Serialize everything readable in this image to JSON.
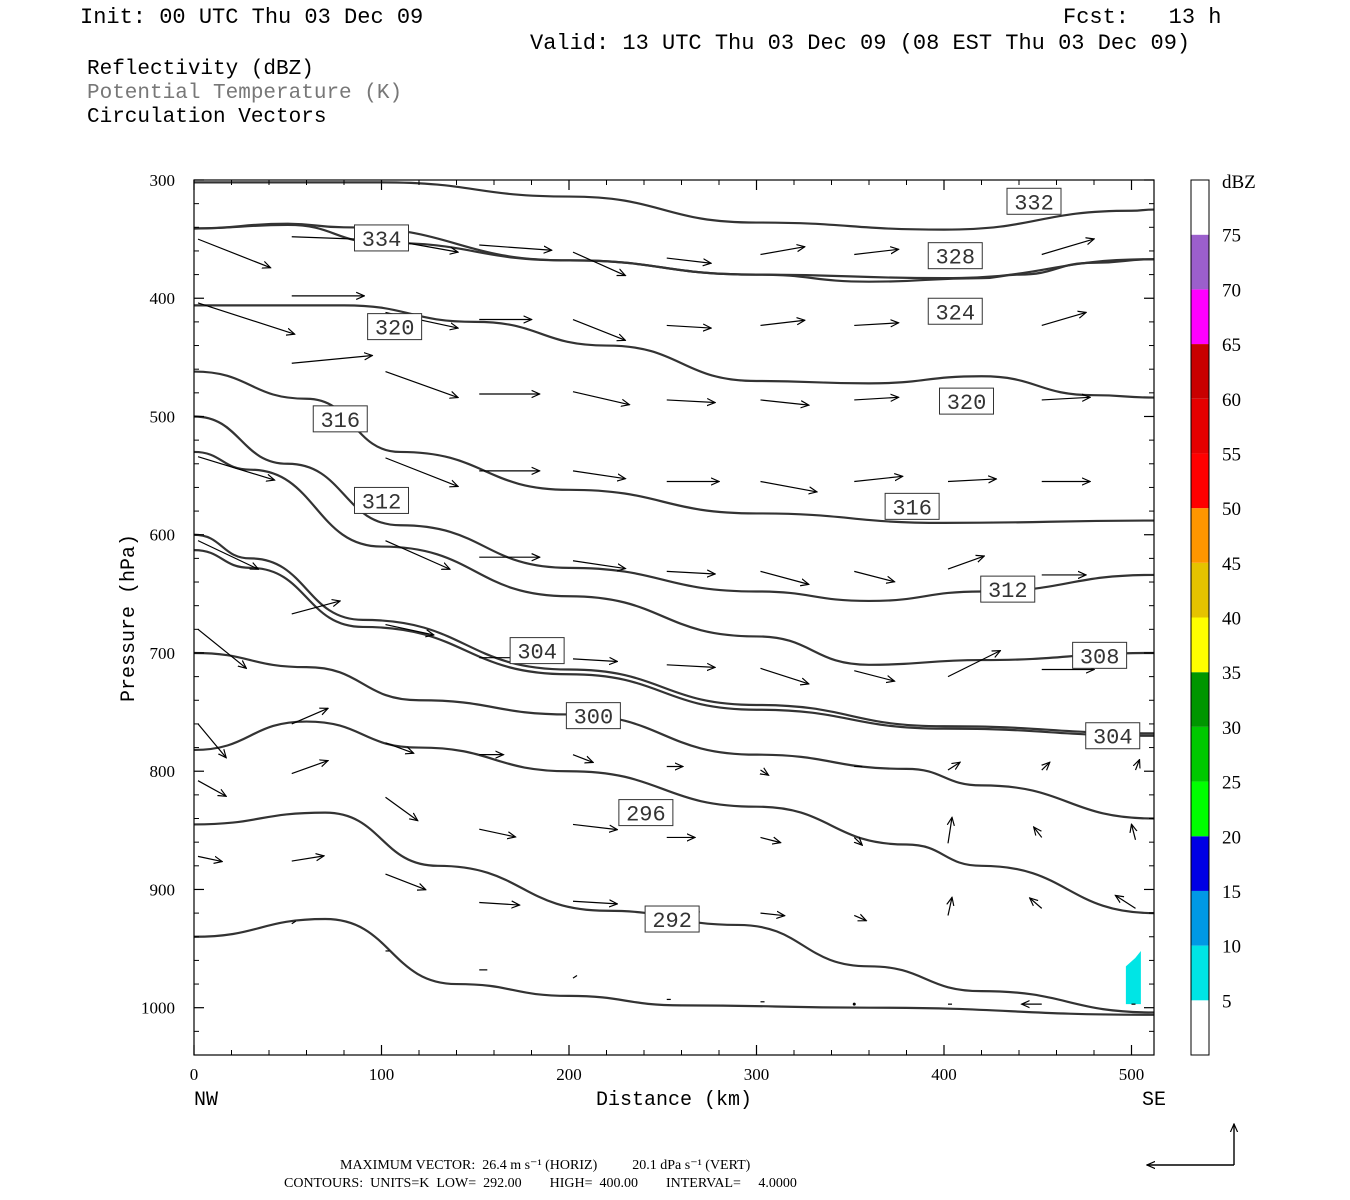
{
  "header": {
    "init": "Init: 00 UTC Thu 03 Dec 09",
    "fcst": "Fcst:   13 h",
    "valid": "Valid: 13 UTC Thu 03 Dec 09 (08 EST Thu 03 Dec 09)"
  },
  "fields": {
    "reflectivity": "Reflectivity (dBZ)",
    "potential_temperature": "Potential Temperature (K)",
    "circulation": "Circulation Vectors"
  },
  "footer": {
    "max_vector": "MAXIMUM VECTOR:  26.4 m s⁻¹ (HORIZ)          20.1 dPa s⁻¹ (VERT)",
    "contours": "CONTOURS:  UNITS=K  LOW=  292.00        HIGH=  400.00        INTERVAL=     4.0000"
  },
  "colors": {
    "contour": "#333333",
    "vector": "#000000",
    "reflectivity_echo": "#00e5e5"
  },
  "chart_data": {
    "type": "cross-section",
    "xlabel": "Distance (km)",
    "ylabel": "Pressure (hPa)",
    "x_range": [
      0,
      512
    ],
    "y_range": [
      1040,
      300
    ],
    "x_ticks": [
      0,
      100,
      200,
      300,
      400,
      500
    ],
    "y_ticks": [
      300,
      400,
      500,
      600,
      700,
      800,
      900,
      1000
    ],
    "x_end_labels": {
      "left": "NW",
      "right": "SE"
    },
    "colorbar": {
      "unit": "dBZ",
      "levels": [
        5,
        10,
        15,
        20,
        25,
        30,
        35,
        40,
        45,
        50,
        55,
        60,
        65,
        70,
        75
      ],
      "colors": [
        "#ffffff",
        "#00e5e5",
        "#0099e5",
        "#0000e5",
        "#00ff00",
        "#00c800",
        "#009600",
        "#ffff00",
        "#e5c300",
        "#ff9600",
        "#ff0000",
        "#e50000",
        "#c80000",
        "#ff00ff",
        "#9b5fcc",
        "#ffffff"
      ]
    },
    "contours": [
      {
        "label": "332",
        "label_at": [
          448,
          318
        ],
        "points": [
          [
            0,
            302
          ],
          [
            100,
            302
          ],
          [
            200,
            314
          ],
          [
            300,
            336
          ],
          [
            400,
            342
          ],
          [
            500,
            326
          ],
          [
            512,
            325
          ]
        ]
      },
      {
        "label": "328",
        "label_at": [
          406,
          364
        ],
        "points": [
          [
            0,
            341
          ],
          [
            50,
            338
          ],
          [
            100,
            353
          ],
          [
            200,
            368
          ],
          [
            300,
            380
          ],
          [
            360,
            386
          ],
          [
            420,
            383
          ],
          [
            440,
            380
          ],
          [
            480,
            370
          ],
          [
            512,
            367
          ]
        ]
      },
      {
        "label": "334",
        "label_at": [
          100,
          349
        ],
        "points": [
          [
            0,
            341
          ],
          [
            50,
            337
          ],
          [
            80,
            340
          ],
          [
            200,
            368
          ],
          [
            300,
            380
          ],
          [
            400,
            383
          ],
          [
            512,
            367
          ]
        ]
      },
      {
        "label": "324",
        "label_at": [
          406,
          411
        ],
        "points": [
          [
            0,
            406
          ],
          [
            80,
            406
          ],
          [
            150,
            420
          ],
          [
            220,
            440
          ],
          [
            300,
            470
          ],
          [
            360,
            472
          ],
          [
            420,
            466
          ],
          [
            480,
            482
          ],
          [
            512,
            484
          ]
        ]
      },
      {
        "label": "320",
        "label_at": [
          107,
          424
        ],
        "points": [
          [
            0,
            406
          ],
          [
            80,
            406
          ],
          [
            150,
            420
          ],
          [
            220,
            440
          ],
          [
            300,
            470
          ],
          [
            360,
            472
          ],
          [
            420,
            466
          ],
          [
            480,
            482
          ],
          [
            512,
            484
          ]
        ]
      },
      {
        "label": "320",
        "label_at": [
          412,
          487
        ],
        "points": [
          [
            0,
            462
          ],
          [
            60,
            485
          ],
          [
            110,
            530
          ],
          [
            200,
            562
          ],
          [
            300,
            582
          ],
          [
            400,
            590
          ],
          [
            512,
            588
          ]
        ]
      },
      {
        "label": "316",
        "label_at": [
          78,
          502
        ],
        "points": [
          [
            0,
            462
          ],
          [
            60,
            485
          ],
          [
            110,
            530
          ],
          [
            200,
            562
          ],
          [
            300,
            582
          ],
          [
            400,
            590
          ],
          [
            512,
            588
          ]
        ]
      },
      {
        "label": "316",
        "label_at": [
          383,
          576
        ],
        "points": [
          [
            0,
            500
          ],
          [
            50,
            540
          ],
          [
            110,
            592
          ],
          [
            200,
            628
          ],
          [
            300,
            648
          ],
          [
            360,
            656
          ],
          [
            420,
            648
          ],
          [
            512,
            634
          ]
        ]
      },
      {
        "label": "312",
        "label_at": [
          100,
          571
        ],
        "points": [
          [
            0,
            500
          ],
          [
            50,
            540
          ],
          [
            110,
            592
          ],
          [
            200,
            628
          ],
          [
            300,
            648
          ],
          [
            360,
            656
          ],
          [
            420,
            648
          ],
          [
            512,
            634
          ]
        ]
      },
      {
        "label": "312",
        "label_at": [
          434,
          646
        ],
        "points": [
          [
            0,
            530
          ],
          [
            30,
            545
          ],
          [
            100,
            610
          ],
          [
            200,
            652
          ],
          [
            300,
            686
          ],
          [
            360,
            710
          ],
          [
            420,
            706
          ],
          [
            512,
            700
          ]
        ]
      },
      {
        "label": "308",
        "label_at": [
          483,
          702
        ],
        "points": [
          [
            0,
            600
          ],
          [
            30,
            620
          ],
          [
            90,
            672
          ],
          [
            200,
            714
          ],
          [
            300,
            744
          ],
          [
            400,
            762
          ],
          [
            512,
            768
          ]
        ]
      },
      {
        "label": "304",
        "label_at": [
          183,
          698
        ],
        "points": [
          [
            0,
            613
          ],
          [
            30,
            628
          ],
          [
            90,
            678
          ],
          [
            200,
            718
          ],
          [
            300,
            748
          ],
          [
            400,
            764
          ],
          [
            512,
            770
          ]
        ]
      },
      {
        "label": "304",
        "label_at": [
          490,
          770
        ],
        "points": [
          [
            0,
            700
          ],
          [
            60,
            712
          ],
          [
            120,
            740
          ],
          [
            200,
            752
          ],
          [
            300,
            786
          ],
          [
            380,
            798
          ],
          [
            420,
            812
          ],
          [
            512,
            840
          ]
        ]
      },
      {
        "label": "300",
        "label_at": [
          213,
          753
        ],
        "points": [
          [
            0,
            782
          ],
          [
            60,
            758
          ],
          [
            120,
            780
          ],
          [
            200,
            800
          ],
          [
            300,
            830
          ],
          [
            380,
            862
          ],
          [
            420,
            880
          ],
          [
            512,
            920
          ]
        ]
      },
      {
        "label": "296",
        "label_at": [
          241,
          835
        ],
        "points": [
          [
            0,
            845
          ],
          [
            70,
            835
          ],
          [
            130,
            880
          ],
          [
            220,
            918
          ],
          [
            290,
            930
          ],
          [
            360,
            965
          ],
          [
            420,
            986
          ],
          [
            512,
            1004
          ]
        ]
      },
      {
        "label": "292",
        "label_at": [
          255,
          925
        ],
        "points": [
          [
            0,
            940
          ],
          [
            70,
            925
          ],
          [
            140,
            980
          ],
          [
            200,
            990
          ],
          [
            260,
            998
          ],
          [
            360,
            1000
          ],
          [
            512,
            1006
          ]
        ]
      }
    ],
    "vectors": [
      {
        "x": 0,
        "p": 350,
        "u": 36,
        "v": -22
      },
      {
        "x": 50,
        "p": 348,
        "u": 36,
        "v": -2
      },
      {
        "x": 100,
        "p": 350,
        "u": 36,
        "v": -10
      },
      {
        "x": 150,
        "p": 355,
        "u": 36,
        "v": -4
      },
      {
        "x": 200,
        "p": 361,
        "u": 26,
        "v": -18
      },
      {
        "x": 250,
        "p": 366,
        "u": 22,
        "v": -4
      },
      {
        "x": 300,
        "p": 363,
        "u": 22,
        "v": 6
      },
      {
        "x": 350,
        "p": 363,
        "u": 22,
        "v": 4
      },
      {
        "x": 450,
        "p": 363,
        "u": 26,
        "v": 12
      },
      {
        "x": 0,
        "p": 404,
        "u": 48,
        "v": -24
      },
      {
        "x": 50,
        "p": 398,
        "u": 36,
        "v": 0
      },
      {
        "x": 100,
        "p": 412,
        "u": 36,
        "v": -12
      },
      {
        "x": 150,
        "p": 418,
        "u": 26,
        "v": 0
      },
      {
        "x": 200,
        "p": 418,
        "u": 26,
        "v": -16
      },
      {
        "x": 250,
        "p": 423,
        "u": 22,
        "v": -2
      },
      {
        "x": 300,
        "p": 423,
        "u": 22,
        "v": 4
      },
      {
        "x": 350,
        "p": 423,
        "u": 22,
        "v": 2
      },
      {
        "x": 450,
        "p": 423,
        "u": 22,
        "v": 10
      },
      {
        "x": 50,
        "p": 455,
        "u": 40,
        "v": 6
      },
      {
        "x": 100,
        "p": 462,
        "u": 36,
        "v": -20
      },
      {
        "x": 150,
        "p": 481,
        "u": 30,
        "v": 0
      },
      {
        "x": 200,
        "p": 479,
        "u": 28,
        "v": -10
      },
      {
        "x": 250,
        "p": 486,
        "u": 24,
        "v": -2
      },
      {
        "x": 300,
        "p": 486,
        "u": 24,
        "v": -4
      },
      {
        "x": 350,
        "p": 486,
        "u": 22,
        "v": 2
      },
      {
        "x": 450,
        "p": 486,
        "u": 24,
        "v": 2
      },
      {
        "x": 0,
        "p": 534,
        "u": 38,
        "v": -18
      },
      {
        "x": 100,
        "p": 535,
        "u": 36,
        "v": -22
      },
      {
        "x": 150,
        "p": 546,
        "u": 30,
        "v": 0
      },
      {
        "x": 200,
        "p": 546,
        "u": 26,
        "v": -6
      },
      {
        "x": 250,
        "p": 555,
        "u": 26,
        "v": 0
      },
      {
        "x": 300,
        "p": 555,
        "u": 28,
        "v": -8
      },
      {
        "x": 350,
        "p": 555,
        "u": 24,
        "v": 4
      },
      {
        "x": 400,
        "p": 555,
        "u": 24,
        "v": 2
      },
      {
        "x": 450,
        "p": 555,
        "u": 24,
        "v": 0
      },
      {
        "x": 0,
        "p": 605,
        "u": 30,
        "v": -22
      },
      {
        "x": 100,
        "p": 605,
        "u": 32,
        "v": -22
      },
      {
        "x": 150,
        "p": 619,
        "u": 30,
        "v": 0
      },
      {
        "x": 200,
        "p": 622,
        "u": 26,
        "v": -6
      },
      {
        "x": 250,
        "p": 631,
        "u": 24,
        "v": -2
      },
      {
        "x": 300,
        "p": 631,
        "u": 24,
        "v": -10
      },
      {
        "x": 350,
        "p": 631,
        "u": 20,
        "v": -8
      },
      {
        "x": 400,
        "p": 629,
        "u": 18,
        "v": 10
      },
      {
        "x": 450,
        "p": 634,
        "u": 22,
        "v": 0
      },
      {
        "x": 0,
        "p": 680,
        "u": 24,
        "v": -30
      },
      {
        "x": 50,
        "p": 667,
        "u": 24,
        "v": 10
      },
      {
        "x": 100,
        "p": 676,
        "u": 24,
        "v": -8
      },
      {
        "x": 150,
        "p": 704,
        "u": 20,
        "v": 0
      },
      {
        "x": 200,
        "p": 705,
        "u": 22,
        "v": -2
      },
      {
        "x": 250,
        "p": 710,
        "u": 24,
        "v": -2
      },
      {
        "x": 300,
        "p": 713,
        "u": 24,
        "v": -12
      },
      {
        "x": 350,
        "p": 715,
        "u": 20,
        "v": -8
      },
      {
        "x": 400,
        "p": 720,
        "u": 26,
        "v": 20
      },
      {
        "x": 450,
        "p": 714,
        "u": 26,
        "v": 0
      },
      {
        "x": 0,
        "p": 760,
        "u": 14,
        "v": -26
      },
      {
        "x": 50,
        "p": 760,
        "u": 18,
        "v": 12
      },
      {
        "x": 100,
        "p": 776,
        "u": 14,
        "v": -8
      },
      {
        "x": 150,
        "p": 786,
        "u": 12,
        "v": 0
      },
      {
        "x": 200,
        "p": 786,
        "u": 10,
        "v": -6
      },
      {
        "x": 250,
        "p": 796,
        "u": 8,
        "v": 0
      },
      {
        "x": 300,
        "p": 799,
        "u": 4,
        "v": -4
      },
      {
        "x": 350,
        "p": 796,
        "u": 4,
        "v": 0
      },
      {
        "x": 400,
        "p": 799,
        "u": 6,
        "v": 6
      },
      {
        "x": 450,
        "p": 799,
        "u": 4,
        "v": 6
      },
      {
        "x": 500,
        "p": 799,
        "u": 2,
        "v": 8
      },
      {
        "x": 0,
        "p": 808,
        "u": 14,
        "v": -12
      },
      {
        "x": 50,
        "p": 802,
        "u": 18,
        "v": 10
      },
      {
        "x": 100,
        "p": 822,
        "u": 16,
        "v": -18
      },
      {
        "x": 150,
        "p": 849,
        "u": 18,
        "v": -6
      },
      {
        "x": 200,
        "p": 845,
        "u": 22,
        "v": -4
      },
      {
        "x": 250,
        "p": 856,
        "u": 14,
        "v": 0
      },
      {
        "x": 300,
        "p": 856,
        "u": 10,
        "v": -4
      },
      {
        "x": 350,
        "p": 856,
        "u": 4,
        "v": -6
      },
      {
        "x": 400,
        "p": 861,
        "u": 2,
        "v": 20
      },
      {
        "x": 450,
        "p": 856,
        "u": -4,
        "v": 8
      },
      {
        "x": 500,
        "p": 858,
        "u": -2,
        "v": 12
      },
      {
        "x": 0,
        "p": 872,
        "u": 12,
        "v": -4
      },
      {
        "x": 50,
        "p": 876,
        "u": 16,
        "v": 4
      },
      {
        "x": 100,
        "p": 887,
        "u": 20,
        "v": -12
      },
      {
        "x": 150,
        "p": 911,
        "u": 20,
        "v": -2
      },
      {
        "x": 200,
        "p": 910,
        "u": 22,
        "v": -2
      },
      {
        "x": 250,
        "p": 919,
        "u": 16,
        "v": 0
      },
      {
        "x": 300,
        "p": 920,
        "u": 12,
        "v": -2
      },
      {
        "x": 350,
        "p": 922,
        "u": 6,
        "v": -4
      },
      {
        "x": 400,
        "p": 922,
        "u": 2,
        "v": 14
      },
      {
        "x": 450,
        "p": 916,
        "u": -6,
        "v": 8
      },
      {
        "x": 500,
        "p": 916,
        "u": -10,
        "v": 10
      },
      {
        "x": 50,
        "p": 929,
        "u": 2,
        "v": 2
      },
      {
        "x": 100,
        "p": 952,
        "u": 2,
        "v": 0
      },
      {
        "x": 150,
        "p": 968,
        "u": 4,
        "v": 0
      },
      {
        "x": 200,
        "p": 975,
        "u": 2,
        "v": 2
      },
      {
        "x": 250,
        "p": 993,
        "u": 2,
        "v": 0
      },
      {
        "x": 300,
        "p": 995,
        "u": 2,
        "v": 0
      },
      {
        "x": 350,
        "p": 997,
        "u": 0,
        "v": 0
      },
      {
        "x": 400,
        "p": 997,
        "u": 2,
        "v": 0
      },
      {
        "x": 450,
        "p": 997,
        "u": -10,
        "v": 0
      },
      {
        "x": 500,
        "p": 997,
        "u": -2,
        "v": 0
      }
    ],
    "echo": {
      "dbz": "5-10",
      "polygon": [
        [
          497,
          997
        ],
        [
          497,
          965
        ],
        [
          502,
          958
        ],
        [
          505,
          952
        ],
        [
          505,
          997
        ]
      ]
    }
  }
}
